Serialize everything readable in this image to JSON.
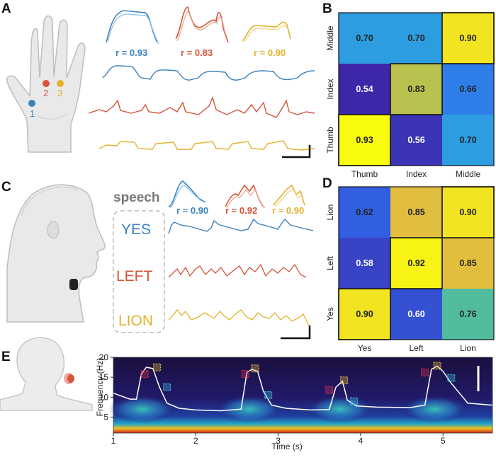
{
  "colors": {
    "blue": "#3a82c0",
    "red": "#d4553a",
    "yellow": "#e3b22b"
  },
  "panels": {
    "A": {
      "letter": "A",
      "markers": [
        "1",
        "2",
        "3"
      ],
      "correlations": [
        "r = 0.93",
        "r = 0.83",
        "r = 0.90"
      ]
    },
    "B": {
      "letter": "B",
      "row_labels": [
        "Middle",
        "Index",
        "Thumb"
      ],
      "col_labels": [
        "Thumb",
        "Index",
        "Middle"
      ],
      "values": [
        [
          "0.70",
          "0.70",
          "0.90"
        ],
        [
          "0.54",
          "0.83",
          "0.66"
        ],
        [
          "0.93",
          "0.56",
          "0.70"
        ]
      ]
    },
    "C": {
      "letter": "C",
      "speech_label": "speech",
      "words": [
        "YES",
        "LEFT",
        "LION"
      ],
      "correlations": [
        "r = 0.90",
        "r = 0.92",
        "r = 0.90"
      ]
    },
    "D": {
      "letter": "D",
      "row_labels": [
        "Lion",
        "Left",
        "Yes"
      ],
      "col_labels": [
        "Yes",
        "Left",
        "Lion"
      ],
      "values": [
        [
          "0.62",
          "0.85",
          "0.90"
        ],
        [
          "0.58",
          "0.92",
          "0.85"
        ],
        [
          "0.90",
          "0.60",
          "0.76"
        ]
      ]
    },
    "E": {
      "letter": "E",
      "xlabel": "Time (s)",
      "ylabel": "Frequency (Hz)",
      "x_ticks": [
        "1",
        "2",
        "3",
        "4",
        "5"
      ],
      "y_ticks": [
        "5",
        "10",
        "15",
        "20"
      ]
    }
  },
  "chart_data": [
    {
      "type": "heatmap",
      "panel": "B",
      "rows": [
        "Middle",
        "Index",
        "Thumb"
      ],
      "columns": [
        "Thumb",
        "Index",
        "Middle"
      ],
      "values": [
        [
          0.7,
          0.7,
          0.9
        ],
        [
          0.54,
          0.83,
          0.66
        ],
        [
          0.93,
          0.56,
          0.7
        ]
      ]
    },
    {
      "type": "heatmap",
      "panel": "D",
      "rows": [
        "Lion",
        "Left",
        "Yes"
      ],
      "columns": [
        "Yes",
        "Left",
        "Lion"
      ],
      "values": [
        [
          0.62,
          0.85,
          0.9
        ],
        [
          0.58,
          0.92,
          0.85
        ],
        [
          0.9,
          0.6,
          0.76
        ]
      ]
    },
    {
      "type": "line",
      "panel": "E",
      "xlabel": "Time (s)",
      "ylabel": "Frequency (Hz)",
      "xlim": [
        1,
        5.6
      ],
      "ylim": [
        1,
        20
      ],
      "x": [
        1.0,
        1.2,
        1.28,
        1.34,
        1.4,
        1.48,
        1.56,
        1.65,
        1.8,
        2.0,
        2.3,
        2.55,
        2.62,
        2.68,
        2.75,
        2.82,
        2.92,
        3.1,
        3.4,
        3.62,
        3.7,
        3.78,
        3.84,
        3.95,
        4.2,
        4.6,
        4.78,
        4.86,
        4.93,
        5.0,
        5.1,
        5.3,
        5.6
      ],
      "y": [
        11,
        9.5,
        9.5,
        15.8,
        17.5,
        17.2,
        12.5,
        8.5,
        7.2,
        6.8,
        6.6,
        7.0,
        16.2,
        17.0,
        16.5,
        11.5,
        8.0,
        7.2,
        6.8,
        6.9,
        12.5,
        14.0,
        9.2,
        7.8,
        7.5,
        7.4,
        8.0,
        17.0,
        17.8,
        16.5,
        13.5,
        8.5,
        8.0
      ]
    }
  ]
}
